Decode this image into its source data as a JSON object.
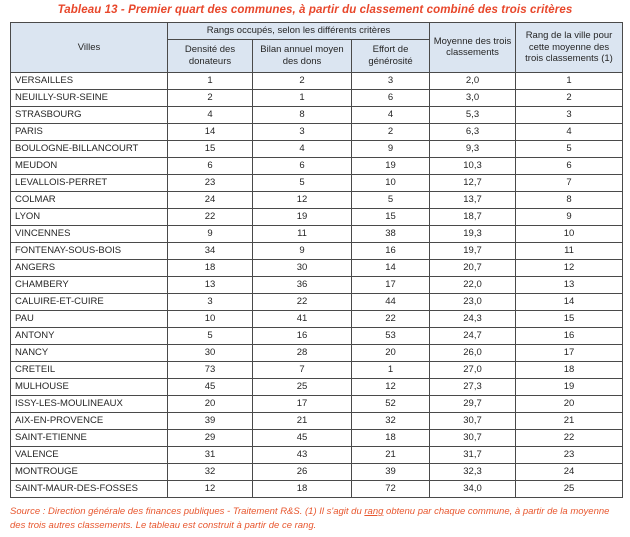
{
  "title": "Tableau 13 - Premier quart des communes, à partir du classement combiné des trois critères",
  "colors": {
    "accent_red": "#e8472b",
    "header_bg": "#dbe5f1",
    "rank_column_bg": "#dbe5f1",
    "border": "#4a4a4a",
    "text": "#262626"
  },
  "table": {
    "header": {
      "villes": "Villes",
      "group": "Rangs occupés, selon les différents critères",
      "densite": "Densité des donateurs",
      "bilan": "Bilan annuel moyen des dons",
      "effort": "Effort de générosité",
      "moyenne": "Moyenne des trois classements",
      "rang": "Rang de la ville pour cette moyenne des trois classements (1)"
    },
    "rows": [
      {
        "ville": "VERSAILLES",
        "densite": "1",
        "bilan": "2",
        "effort": "3",
        "moyenne": "2,0",
        "rang": "1"
      },
      {
        "ville": "NEUILLY-SUR-SEINE",
        "densite": "2",
        "bilan": "1",
        "effort": "6",
        "moyenne": "3,0",
        "rang": "2"
      },
      {
        "ville": "STRASBOURG",
        "densite": "4",
        "bilan": "8",
        "effort": "4",
        "moyenne": "5,3",
        "rang": "3"
      },
      {
        "ville": "PARIS",
        "densite": "14",
        "bilan": "3",
        "effort": "2",
        "moyenne": "6,3",
        "rang": "4"
      },
      {
        "ville": "BOULOGNE-BILLANCOURT",
        "densite": "15",
        "bilan": "4",
        "effort": "9",
        "moyenne": "9,3",
        "rang": "5"
      },
      {
        "ville": "MEUDON",
        "densite": "6",
        "bilan": "6",
        "effort": "19",
        "moyenne": "10,3",
        "rang": "6"
      },
      {
        "ville": "LEVALLOIS-PERRET",
        "densite": "23",
        "bilan": "5",
        "effort": "10",
        "moyenne": "12,7",
        "rang": "7"
      },
      {
        "ville": "COLMAR",
        "densite": "24",
        "bilan": "12",
        "effort": "5",
        "moyenne": "13,7",
        "rang": "8"
      },
      {
        "ville": "LYON",
        "densite": "22",
        "bilan": "19",
        "effort": "15",
        "moyenne": "18,7",
        "rang": "9"
      },
      {
        "ville": "VINCENNES",
        "densite": "9",
        "bilan": "11",
        "effort": "38",
        "moyenne": "19,3",
        "rang": "10"
      },
      {
        "ville": "FONTENAY-SOUS-BOIS",
        "densite": "34",
        "bilan": "9",
        "effort": "16",
        "moyenne": "19,7",
        "rang": "11"
      },
      {
        "ville": "ANGERS",
        "densite": "18",
        "bilan": "30",
        "effort": "14",
        "moyenne": "20,7",
        "rang": "12"
      },
      {
        "ville": "CHAMBERY",
        "densite": "13",
        "bilan": "36",
        "effort": "17",
        "moyenne": "22,0",
        "rang": "13"
      },
      {
        "ville": "CALUIRE-ET-CUIRE",
        "densite": "3",
        "bilan": "22",
        "effort": "44",
        "moyenne": "23,0",
        "rang": "14"
      },
      {
        "ville": "PAU",
        "densite": "10",
        "bilan": "41",
        "effort": "22",
        "moyenne": "24,3",
        "rang": "15"
      },
      {
        "ville": "ANTONY",
        "densite": "5",
        "bilan": "16",
        "effort": "53",
        "moyenne": "24,7",
        "rang": "16"
      },
      {
        "ville": "NANCY",
        "densite": "30",
        "bilan": "28",
        "effort": "20",
        "moyenne": "26,0",
        "rang": "17"
      },
      {
        "ville": "CRETEIL",
        "densite": "73",
        "bilan": "7",
        "effort": "1",
        "moyenne": "27,0",
        "rang": "18"
      },
      {
        "ville": "MULHOUSE",
        "densite": "45",
        "bilan": "25",
        "effort": "12",
        "moyenne": "27,3",
        "rang": "19"
      },
      {
        "ville": "ISSY-LES-MOULINEAUX",
        "densite": "20",
        "bilan": "17",
        "effort": "52",
        "moyenne": "29,7",
        "rang": "20"
      },
      {
        "ville": "AIX-EN-PROVENCE",
        "densite": "39",
        "bilan": "21",
        "effort": "32",
        "moyenne": "30,7",
        "rang": "21"
      },
      {
        "ville": "SAINT-ETIENNE",
        "densite": "29",
        "bilan": "45",
        "effort": "18",
        "moyenne": "30,7",
        "rang": "22"
      },
      {
        "ville": "VALENCE",
        "densite": "31",
        "bilan": "43",
        "effort": "21",
        "moyenne": "31,7",
        "rang": "23"
      },
      {
        "ville": "MONTROUGE",
        "densite": "32",
        "bilan": "26",
        "effort": "39",
        "moyenne": "32,3",
        "rang": "24"
      },
      {
        "ville": "SAINT-MAUR-DES-FOSSES",
        "densite": "12",
        "bilan": "18",
        "effort": "72",
        "moyenne": "34,0",
        "rang": "25"
      }
    ]
  },
  "footer": {
    "part1": "Source : Direction générale des finances publiques - Traitement R&S. (1) Il s'agit du ",
    "underlined": "rang",
    "part2": " obtenu par chaque commune, à partir de la moyenne des trois autres classements. Le tableau est construit à partir de ce rang."
  }
}
